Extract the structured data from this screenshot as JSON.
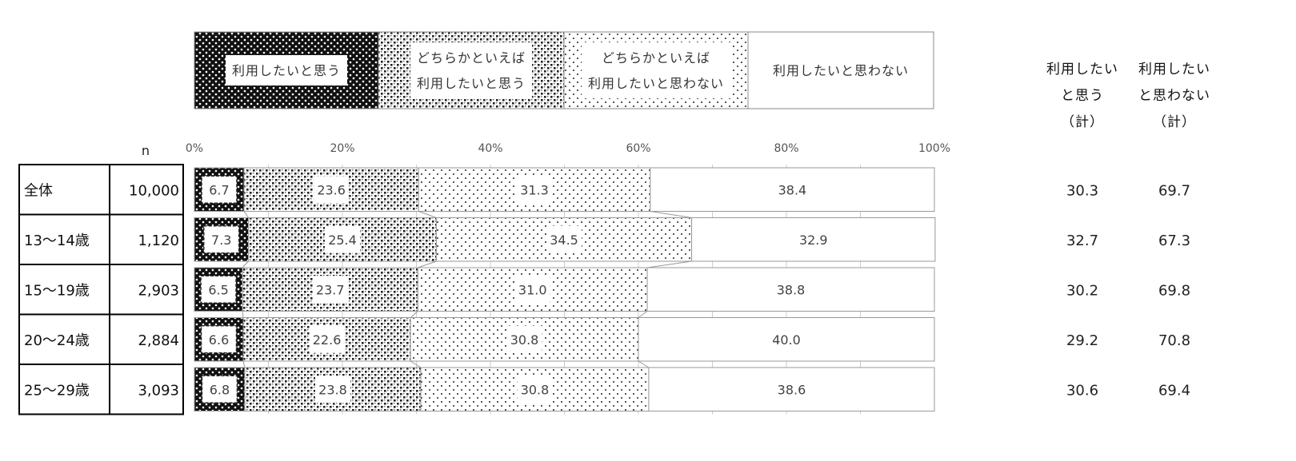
{
  "chart_data": {
    "type": "bar",
    "stacked": true,
    "orientation": "horizontal",
    "xlim": [
      0,
      100
    ],
    "x_ticks": [
      "0%",
      "20%",
      "40%",
      "60%",
      "80%",
      "100%"
    ],
    "table_header_n": "n",
    "categories": [
      "全体",
      "13～14歳",
      "15～19歳",
      "20～24歳",
      "25～29歳"
    ],
    "n_values": [
      "10,000",
      "1,120",
      "2,903",
      "2,884",
      "3,093"
    ],
    "series": [
      {
        "name": "利用したいと思う",
        "values": [
          6.7,
          7.3,
          6.5,
          6.6,
          6.8
        ]
      },
      {
        "name": "どちらかといえば 利用したいと思う",
        "values": [
          23.6,
          25.4,
          23.7,
          22.6,
          23.8
        ]
      },
      {
        "name": "どちらかといえば 利用したいと思わない",
        "values": [
          31.3,
          34.5,
          31.0,
          30.8,
          30.8
        ]
      },
      {
        "name": "利用したいと思わない",
        "values": [
          38.4,
          32.9,
          38.8,
          40.0,
          38.6
        ]
      }
    ],
    "legend": [
      {
        "lines": [
          "利用したいと思う"
        ],
        "pattern": "dense-dots"
      },
      {
        "lines": [
          "どちらかといえば",
          "利用したいと思う"
        ],
        "pattern": "checker"
      },
      {
        "lines": [
          "どちらかといえば",
          "利用したいと思わない"
        ],
        "pattern": "sparse-dots"
      },
      {
        "lines": [
          "利用したいと思わない"
        ],
        "pattern": "white"
      }
    ],
    "legend_position": "top",
    "totals": {
      "headers": [
        [
          "利用したい",
          "と思う",
          "（計）"
        ],
        [
          "利用したい",
          "と思わない",
          "（計）"
        ]
      ],
      "values": [
        [
          "30.3",
          "69.7"
        ],
        [
          "32.7",
          "67.3"
        ],
        [
          "30.2",
          "69.8"
        ],
        [
          "29.2",
          "70.8"
        ],
        [
          "30.6",
          "69.4"
        ]
      ]
    },
    "grid": true,
    "colors": {
      "dark": "#111111",
      "grid": "#cccccc",
      "border": "#999999"
    }
  }
}
